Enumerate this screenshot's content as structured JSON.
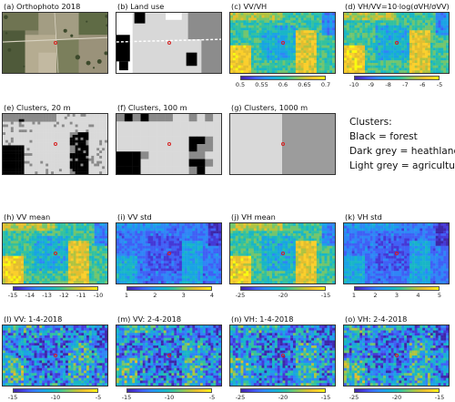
{
  "panels": [
    {
      "id": "a",
      "title": "(a) Orthophoto 2018",
      "kind": "photo"
    },
    {
      "id": "b",
      "title": "(b) Land use",
      "kind": "landuse"
    },
    {
      "id": "c",
      "title": "(c) VV/VH",
      "kind": "sar",
      "ticks": [
        "0.5",
        "0.55",
        "0.6",
        "0.65",
        "0.7"
      ]
    },
    {
      "id": "d",
      "title": "(d) VH/VV=10·log(σVH/σVV)",
      "kind": "sar",
      "ticks": [
        "-10",
        "-9",
        "-8",
        "-7",
        "-6",
        "-5"
      ]
    },
    {
      "id": "e",
      "title": "(e) Clusters, 20 m",
      "kind": "cluster20"
    },
    {
      "id": "f",
      "title": "(f) Clusters, 100 m",
      "kind": "cluster100"
    },
    {
      "id": "g",
      "title": "(g) Clusters, 1000 m",
      "kind": "cluster1000"
    },
    {
      "id": "h",
      "title": "(h) VV mean",
      "kind": "sar",
      "ticks": [
        "-15",
        "-14",
        "-13",
        "-12",
        "-11",
        "-10"
      ]
    },
    {
      "id": "i",
      "title": "(i) VV std",
      "kind": "sardark",
      "ticks": [
        "1",
        "2",
        "3",
        "4"
      ]
    },
    {
      "id": "j",
      "title": "(j) VH mean",
      "kind": "sar",
      "ticks": [
        "-25",
        "-20",
        "-15"
      ]
    },
    {
      "id": "k",
      "title": "(k) VH std",
      "kind": "sardark",
      "ticks": [
        "1",
        "2",
        "3",
        "4",
        "5"
      ]
    },
    {
      "id": "l",
      "title": "(l) VV: 1-4-2018",
      "kind": "sarnoisy",
      "ticks": [
        "-15",
        "-10",
        "-5"
      ]
    },
    {
      "id": "m",
      "title": "(m) VV: 2-4-2018",
      "kind": "sarnoisy",
      "ticks": [
        "-15",
        "-10",
        "-5"
      ]
    },
    {
      "id": "n",
      "title": "(n) VH: 1-4-2018",
      "kind": "sarnoisy",
      "ticks": [
        "-25",
        "-20",
        "-15"
      ]
    },
    {
      "id": "o",
      "title": "(o) VH: 2-4-2018",
      "kind": "sarnoisy",
      "ticks": [
        "-25",
        "-20",
        "-15"
      ]
    }
  ],
  "legend": {
    "title": "Clusters:",
    "lines": [
      "Black = forest",
      "Dark grey = heathland",
      "Light grey = agriculture"
    ]
  },
  "colors": {
    "pin": "#d62020",
    "parula_low": "#3e26a8",
    "parula_mid": "#1fb8a4",
    "parula_high": "#f9fb0e"
  }
}
